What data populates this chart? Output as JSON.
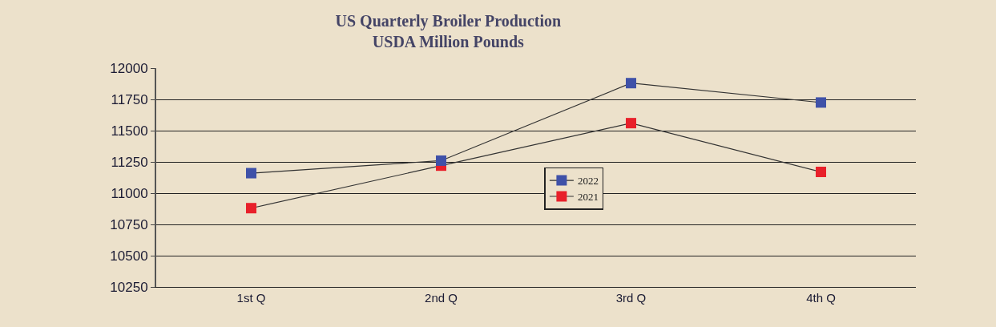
{
  "chart_data": {
    "type": "line",
    "title": "US Quarterly Broiler Production\nUSDA Million Pounds",
    "categories": [
      "1st Q",
      "2nd Q",
      "3rd Q",
      "4th Q"
    ],
    "series": [
      {
        "name": "2022",
        "color": "#3f51a8",
        "values": [
          11160,
          11260,
          11880,
          11725
        ]
      },
      {
        "name": "2021",
        "color": "#e8202a",
        "values": [
          10880,
          11220,
          11560,
          11170
        ]
      }
    ],
    "ylim": [
      10250,
      12000
    ],
    "yticks": [
      10250,
      10500,
      10750,
      11000,
      11250,
      11500,
      11750,
      12000
    ],
    "grid": "y",
    "legend": "center",
    "marker": "square",
    "line_style": "solid"
  }
}
